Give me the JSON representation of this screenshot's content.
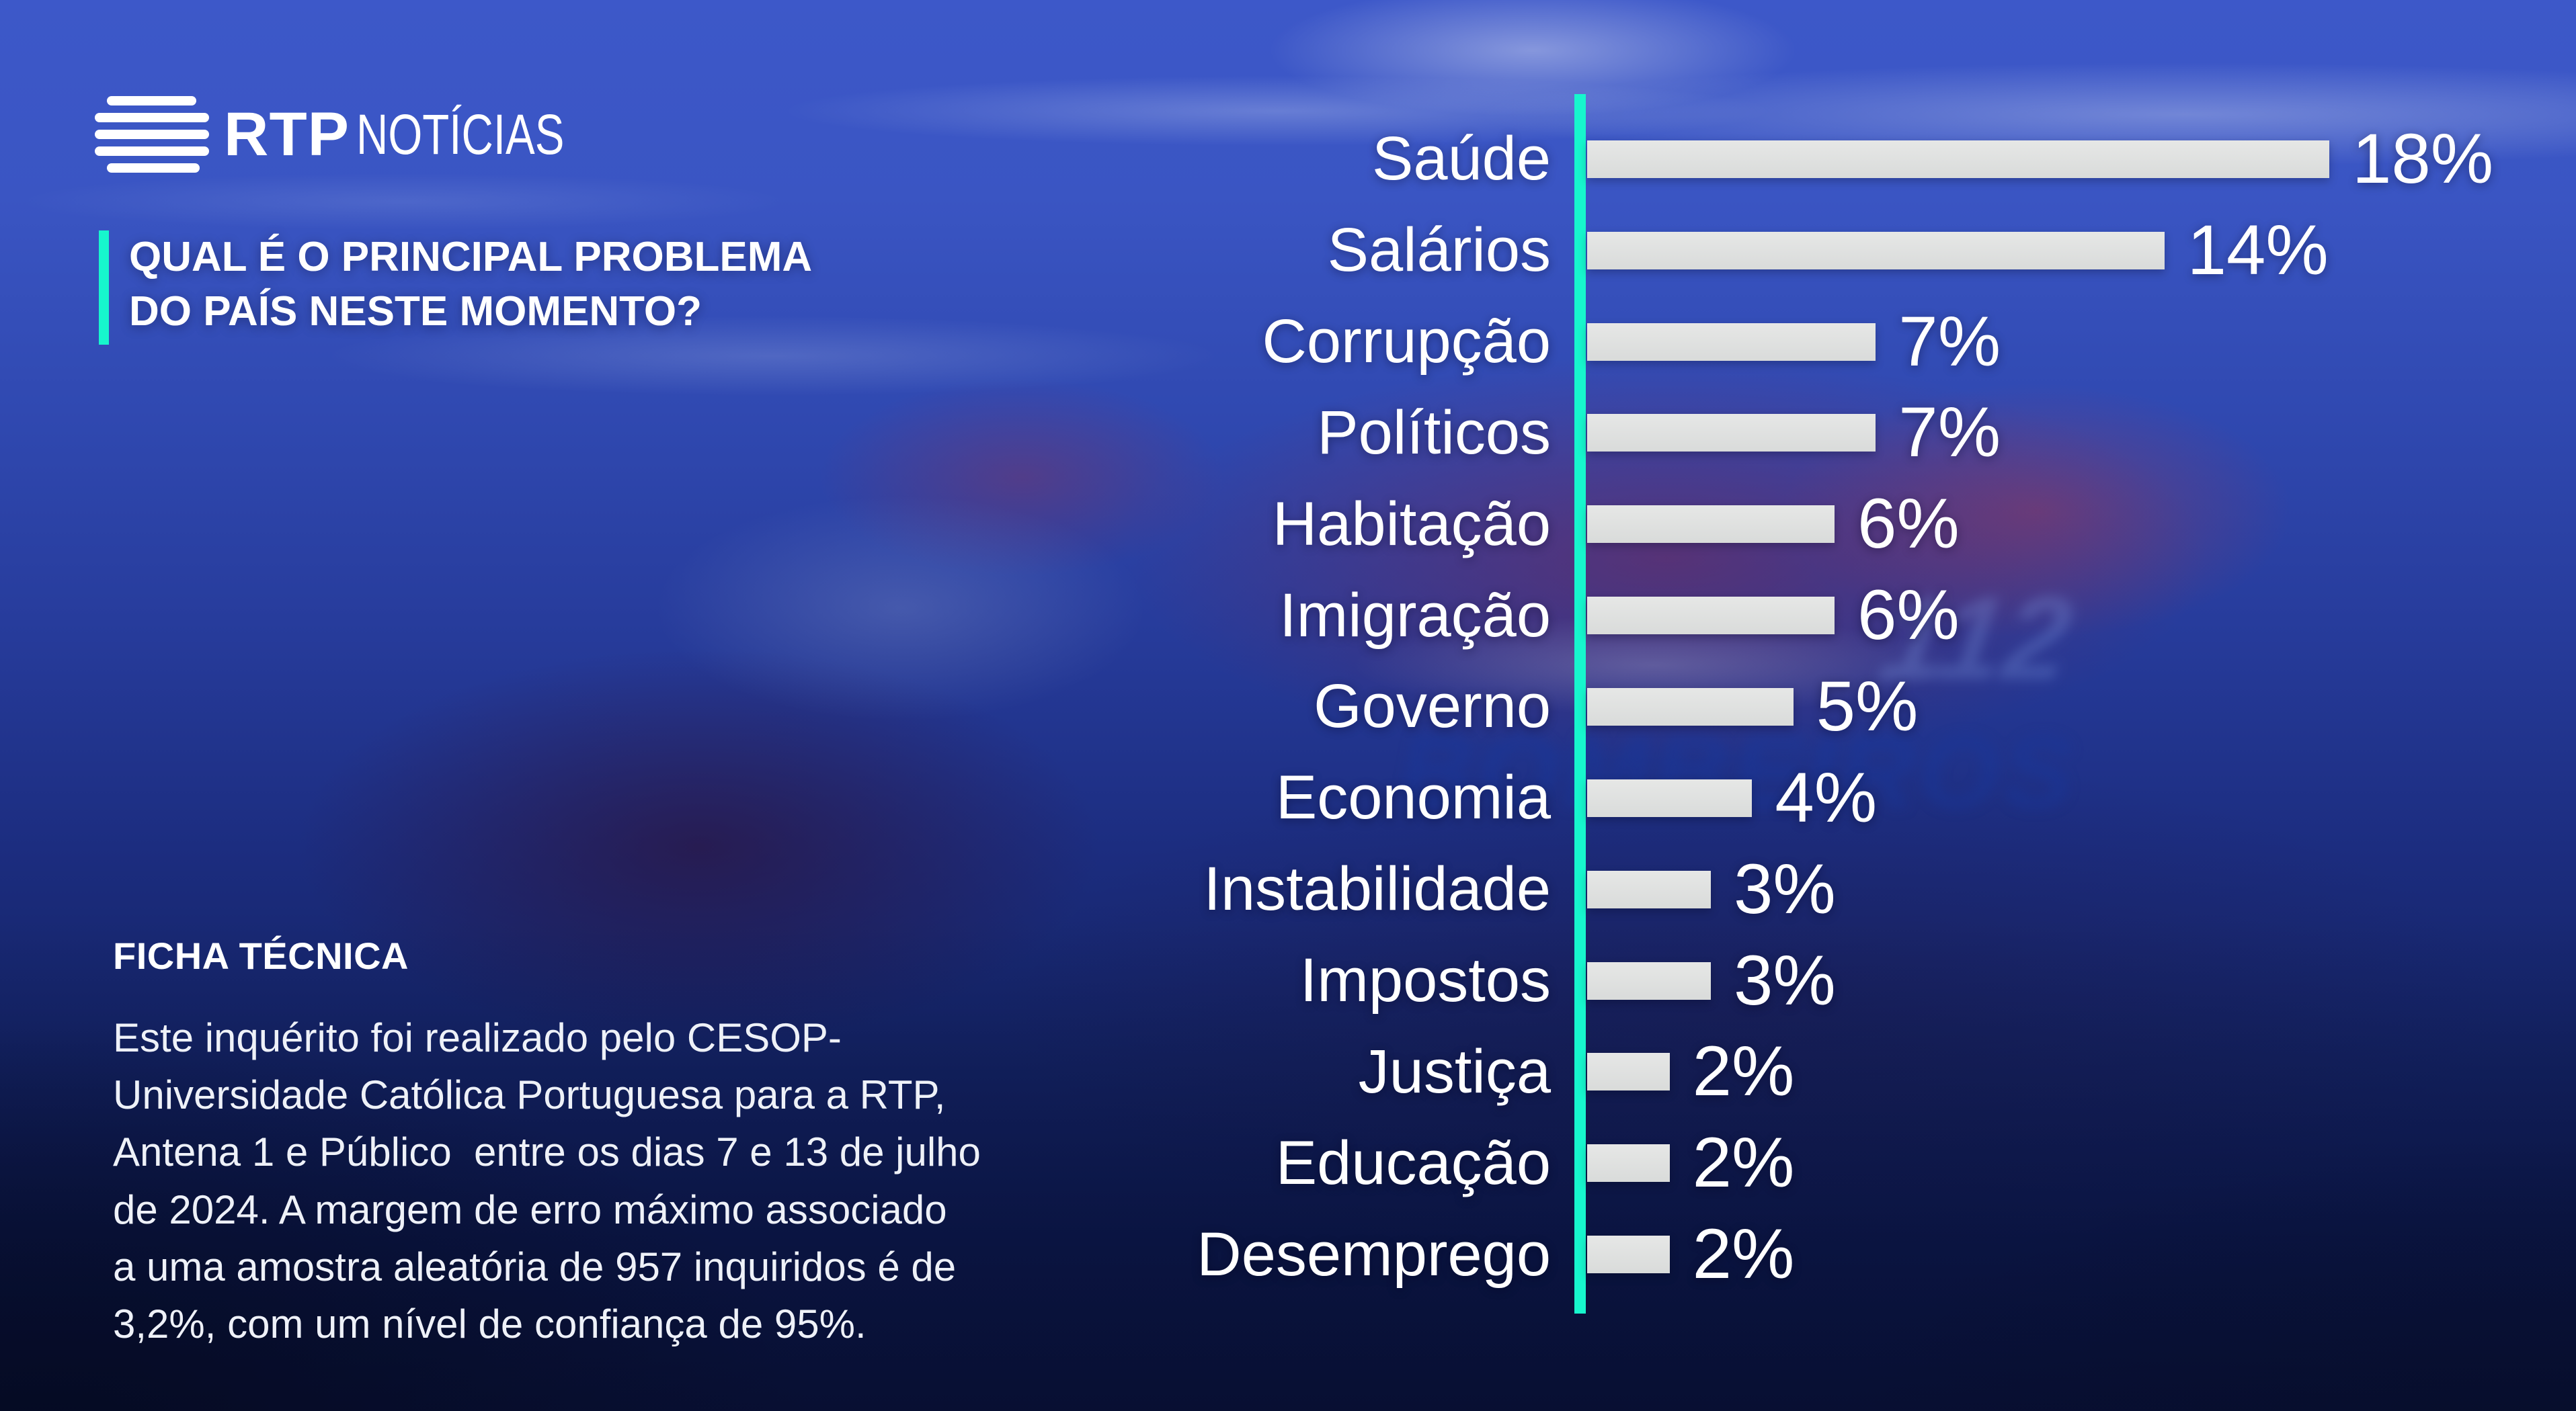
{
  "brand": {
    "logo_icon": "rtp-bars-icon",
    "logo_text": "RTP",
    "channel_text": "NOTÍCIAS"
  },
  "question": {
    "line1": "QUAL É O PRINCIPAL PROBLEMA",
    "line2": "DO PAÍS NESTE MOMENTO?"
  },
  "ficha": {
    "heading": "FICHA TÉCNICA",
    "body": "Este inquérito foi realizado pelo CESOP-\nUniversidade Católica Portuguesa para a RTP,\nAntena 1 e Público  entre os dias 7 e 13 de julho\nde 2024. A margem de erro máximo associado\na uma amostra aleatória de 957 inquiridos é de\n3,2%, com um nível de confiança de 95%."
  },
  "background": {
    "ghost_text_112": "112",
    "ghost_text_bombeiros": "BOMBEIROS"
  },
  "colors": {
    "accent_teal": "#17f6cd",
    "bar_fill": "#e6e7e6",
    "text_white": "#ffffff",
    "bg_top_blue": "#3d58c9",
    "bg_bottom_navy": "#0a1340"
  },
  "chart_data": {
    "type": "bar",
    "orientation": "horizontal",
    "title": "QUAL É O PRINCIPAL PROBLEMA DO PAÍS NESTE MOMENTO?",
    "categories": [
      "Saúde",
      "Salários",
      "Corrupção",
      "Políticos",
      "Habitação",
      "Imigração",
      "Governo",
      "Economia",
      "Instabilidade",
      "Impostos",
      "Justiça",
      "Educação",
      "Desemprego"
    ],
    "values": [
      18,
      14,
      7,
      7,
      6,
      6,
      5,
      4,
      3,
      3,
      2,
      2,
      2
    ],
    "value_labels": [
      "18%",
      "14%",
      "7%",
      "7%",
      "6%",
      "6%",
      "5%",
      "4%",
      "3%",
      "3%",
      "2%",
      "2%",
      "2%"
    ],
    "unit": "%",
    "xlim": [
      0,
      18
    ],
    "grid": false,
    "legend": false,
    "axis_color": "#17f6cd",
    "bar_color": "#e6e7e6"
  }
}
